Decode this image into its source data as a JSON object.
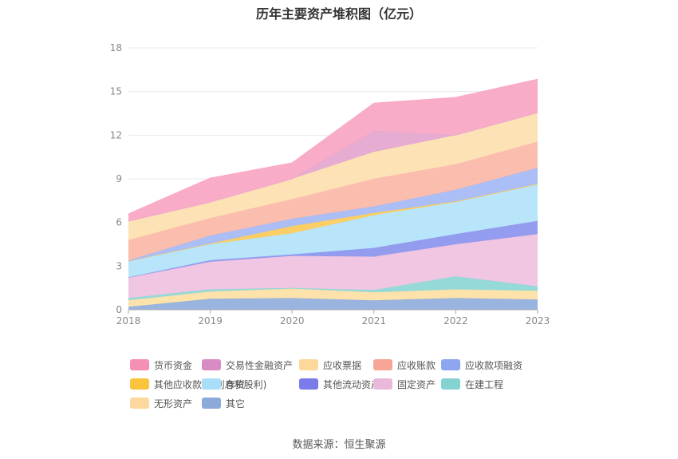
{
  "chart_data": {
    "type": "area",
    "stacked": true,
    "title": "历年主要资产堆积图（亿元）",
    "xlabel": "",
    "ylabel": "",
    "categories": [
      "2018",
      "2019",
      "2020",
      "2021",
      "2022",
      "2023"
    ],
    "ylim": [
      0,
      18
    ],
    "yticks": [
      0,
      3,
      6,
      9,
      12,
      15,
      18
    ],
    "grid": true,
    "legend_position": "bottom",
    "series": [
      {
        "name": "其它",
        "color": "#93b0dc",
        "values": [
          0.2,
          0.75,
          0.8,
          0.65,
          0.8,
          0.7
        ]
      },
      {
        "name": "无形资产",
        "color": "#fde0a6",
        "values": [
          0.45,
          0.5,
          0.65,
          0.55,
          0.6,
          0.6
        ]
      },
      {
        "name": "在建工程",
        "color": "#8fd8d6",
        "values": [
          0.15,
          0.15,
          0.05,
          0.15,
          0.9,
          0.3
        ]
      },
      {
        "name": "固定资产",
        "color": "#efc3e0",
        "values": [
          1.4,
          1.9,
          2.2,
          2.3,
          2.2,
          3.6
        ]
      },
      {
        "name": "其他流动资产",
        "color": "#8e97ee",
        "values": [
          0.02,
          0.1,
          0.1,
          0.6,
          0.7,
          0.9
        ]
      },
      {
        "name": "存货",
        "color": "#b4e4fa",
        "values": [
          1.1,
          1.1,
          1.45,
          2.25,
          2.2,
          2.5
        ]
      },
      {
        "name": "其他应收款(含利息和股利)",
        "color": "#fccc5e",
        "values": [
          0.02,
          0.05,
          0.5,
          0.15,
          0.05,
          0.05
        ]
      },
      {
        "name": "应收款项融资",
        "color": "#a6baf6",
        "values": [
          0.05,
          0.55,
          0.5,
          0.45,
          0.8,
          1.1
        ]
      },
      {
        "name": "应收账款",
        "color": "#fbb9aa",
        "values": [
          1.4,
          1.2,
          1.35,
          1.9,
          1.75,
          1.8
        ]
      },
      {
        "name": "应收票据",
        "color": "#fde0b2",
        "values": [
          1.3,
          1.1,
          1.4,
          1.85,
          2.0,
          2.0
        ]
      },
      {
        "name": "交易性金融资产",
        "color": "#e5a8cf",
        "values": [
          0,
          0,
          0,
          1.45,
          0,
          0
        ]
      },
      {
        "name": "货币资金",
        "color": "#f9a8c5",
        "values": [
          0.5,
          1.65,
          1.1,
          1.9,
          2.6,
          2.3
        ]
      }
    ]
  },
  "legend": [
    {
      "label": "货币资金",
      "color": "#f58fb5"
    },
    {
      "label": "交易性金融资产",
      "color": "#d98bc4"
    },
    {
      "label": "应收票据",
      "color": "#fdd89a"
    },
    {
      "label": "应收账款",
      "color": "#f7a596"
    },
    {
      "label": "应收款项融资",
      "color": "#8ea5f2"
    },
    {
      "label": "其他应收款(含利息和股利)",
      "color": "#fcc33f"
    },
    {
      "label": "存货",
      "color": "#a9def8"
    },
    {
      "label": "其他流动资产",
      "color": "#7b7cea"
    },
    {
      "label": "固定资产",
      "color": "#eab9da"
    },
    {
      "label": "在建工程",
      "color": "#85d3d1"
    },
    {
      "label": "无形资产",
      "color": "#fdd89e"
    },
    {
      "label": "其它",
      "color": "#8caad9"
    }
  ],
  "source": "数据来源：恒生聚源"
}
